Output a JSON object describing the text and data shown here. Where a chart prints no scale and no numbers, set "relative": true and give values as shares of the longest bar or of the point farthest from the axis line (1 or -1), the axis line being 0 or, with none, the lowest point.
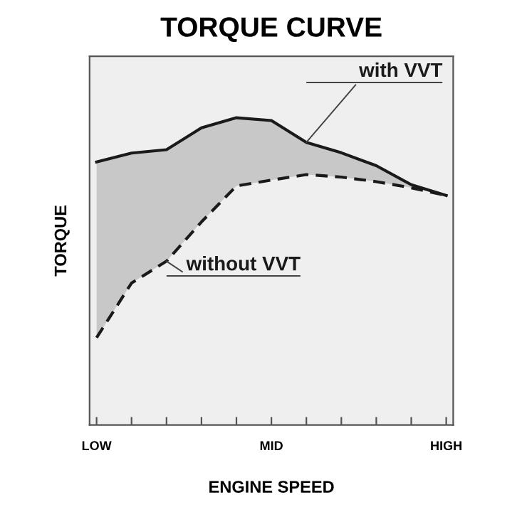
{
  "chart_data": {
    "type": "line",
    "title": "TORQUE CURVE",
    "xlabel": "ENGINE SPEED",
    "ylabel": "TORQUE",
    "categories": [
      "LOW",
      null,
      null,
      null,
      null,
      "MID",
      null,
      null,
      null,
      null,
      "HIGH"
    ],
    "relative": true,
    "legend": false,
    "grid": false,
    "marker": "none",
    "series": [
      {
        "name": "with VVT",
        "color": "#1a1a1a",
        "line_style": "solid",
        "values": [
          0.856,
          0.885,
          0.896,
          0.967,
          1,
          0.991,
          0.92,
          0.886,
          0.844,
          0.782,
          0.747
        ],
        "lower": [
          0.284,
          0.462,
          0.533,
          0.661,
          0.778,
          0.797,
          0.815,
          0.807,
          0.792,
          0.772,
          0.747
        ],
        "upper": [
          0.856,
          0.885,
          0.896,
          0.967,
          1,
          0.991,
          0.92,
          0.886,
          0.844,
          0.782,
          0.747
        ]
      },
      {
        "name": "without VVT",
        "color": "#1a1a1a",
        "line_style": "dashed",
        "values": [
          0.284,
          0.462,
          0.533,
          0.661,
          0.778,
          0.797,
          0.815,
          0.807,
          0.792,
          0.772,
          0.747
        ]
      }
    ]
  }
}
